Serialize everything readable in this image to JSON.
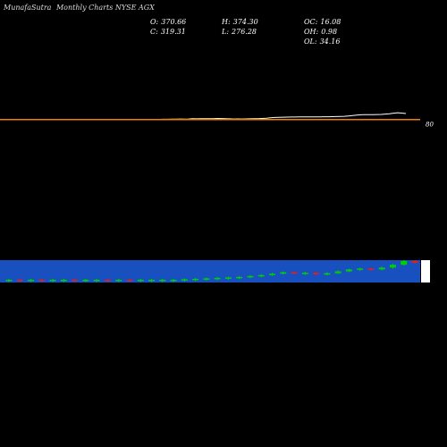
{
  "header": {
    "brand": "MunafaSutra",
    "title": "Monthly Charts NYSE AGX"
  },
  "stats": {
    "O": "370.66",
    "H": "374.30",
    "OC": "16.08",
    "C": "319.31",
    "L": "276.28",
    "OH": "0.98",
    "OL": "34.16"
  },
  "chart_data": [
    {
      "type": "line",
      "series": [
        {
          "values": [
            6,
            4,
            3,
            3,
            3,
            3,
            3,
            3,
            3,
            3,
            3,
            3,
            3,
            3,
            3,
            3,
            3,
            3,
            3,
            3,
            3,
            3,
            3,
            3,
            3,
            3,
            3,
            3,
            3,
            3,
            4,
            4,
            5,
            6,
            6,
            7,
            7,
            8,
            9,
            10,
            11,
            12,
            13,
            15,
            18,
            17,
            19,
            23,
            21,
            24,
            26,
            25,
            27,
            30,
            28,
            24,
            21,
            19,
            20,
            19,
            20,
            21,
            23,
            25,
            30,
            35,
            44,
            52,
            55,
            58,
            60,
            62,
            62,
            64,
            66,
            66,
            67,
            67,
            67,
            68,
            68,
            70,
            72,
            75,
            78,
            86,
            95,
            105,
            112,
            115,
            117,
            115,
            118,
            120,
            128,
            137,
            148,
            158,
            150,
            140
          ]
        }
      ],
      "horizontal_line": {
        "value": 6,
        "color": "#f08000"
      },
      "price_label": "80",
      "line_color": "#ffffff"
    },
    {
      "type": "bar",
      "title": "candle strip",
      "band_color": "#1850c0",
      "candles": [
        {
          "o": 1,
          "c": 1,
          "dir": "up"
        },
        {
          "o": 1,
          "c": 1,
          "dir": "down"
        },
        {
          "o": 1,
          "c": 1,
          "dir": "up"
        },
        {
          "o": 1,
          "c": 1,
          "dir": "down"
        },
        {
          "o": 1,
          "c": 1,
          "dir": "up"
        },
        {
          "o": 1,
          "c": 1,
          "dir": "up"
        },
        {
          "o": 1,
          "c": 1,
          "dir": "down"
        },
        {
          "o": 1,
          "c": 1,
          "dir": "up"
        },
        {
          "o": 1,
          "c": 1,
          "dir": "up"
        },
        {
          "o": 1,
          "c": 1,
          "dir": "down"
        },
        {
          "o": 1,
          "c": 1,
          "dir": "up"
        },
        {
          "o": 1,
          "c": 1,
          "dir": "down"
        },
        {
          "o": 1,
          "c": 1,
          "dir": "up"
        },
        {
          "o": 1,
          "c": 1,
          "dir": "up"
        },
        {
          "o": 1,
          "c": 1,
          "dir": "up"
        },
        {
          "o": 1,
          "c": 1,
          "dir": "up"
        },
        {
          "o": 1,
          "c": 1.5,
          "dir": "up"
        },
        {
          "o": 1.5,
          "c": 2,
          "dir": "up"
        },
        {
          "o": 2,
          "c": 2.5,
          "dir": "up"
        },
        {
          "o": 2.5,
          "c": 3,
          "dir": "up"
        },
        {
          "o": 3,
          "c": 3.5,
          "dir": "up"
        },
        {
          "o": 3.5,
          "c": 4,
          "dir": "up"
        },
        {
          "o": 4,
          "c": 5,
          "dir": "up"
        },
        {
          "o": 5,
          "c": 6,
          "dir": "up"
        },
        {
          "o": 6,
          "c": 7.5,
          "dir": "up"
        },
        {
          "o": 7.5,
          "c": 9,
          "dir": "up"
        },
        {
          "o": 9,
          "c": 8,
          "dir": "down"
        },
        {
          "o": 8,
          "c": 8.5,
          "dir": "up"
        },
        {
          "o": 8.5,
          "c": 7,
          "dir": "down"
        },
        {
          "o": 7,
          "c": 8,
          "dir": "up"
        },
        {
          "o": 8,
          "c": 10,
          "dir": "up"
        },
        {
          "o": 10,
          "c": 12,
          "dir": "up"
        },
        {
          "o": 12,
          "c": 13,
          "dir": "up"
        },
        {
          "o": 13,
          "c": 12,
          "dir": "down"
        },
        {
          "o": 12,
          "c": 14,
          "dir": "up"
        },
        {
          "o": 14,
          "c": 17,
          "dir": "up"
        },
        {
          "o": 17,
          "c": 21,
          "dir": "up"
        },
        {
          "o": 21,
          "c": 19,
          "dir": "down"
        }
      ]
    }
  ]
}
